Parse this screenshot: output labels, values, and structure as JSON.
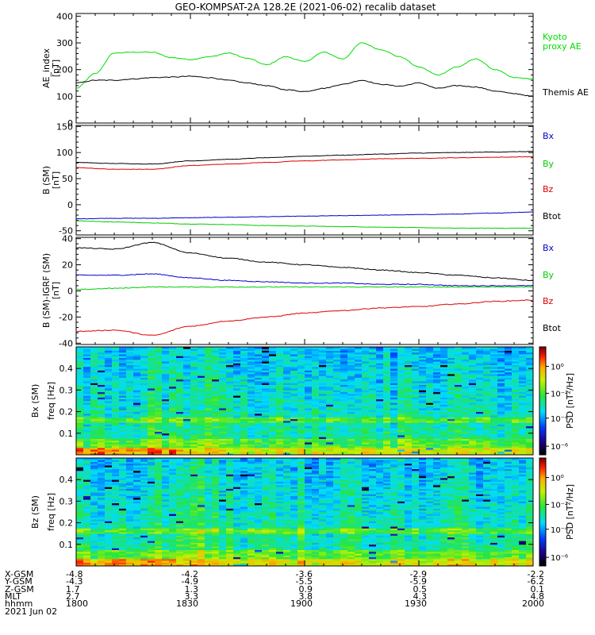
{
  "title": "GEO-KOMPSAT-2A 128.2E (2021-06-02) recalib dataset",
  "x_range_hhmm": [
    1800,
    2000
  ],
  "panel1": {
    "ylabel_line1": "AE_index",
    "ylabel_line2": "[nT]",
    "yticks": [
      0,
      100,
      200,
      300,
      400
    ],
    "ylim": [
      0,
      410
    ],
    "labels": [
      {
        "text": "Kyoto",
        "color": "#00dd00"
      },
      {
        "text": "proxy AE",
        "color": "#00dd00"
      },
      {
        "text": "Themis AE",
        "color": "#000000"
      }
    ]
  },
  "panel2": {
    "ylabel_line1": "B (SM)",
    "ylabel_sub": "t",
    "ylabel_line2": "[nT]",
    "yticks": [
      -50,
      0,
      50,
      100,
      150
    ],
    "ylim": [
      -58,
      152
    ],
    "labels": [
      {
        "text": "Bx",
        "color": "#0000cc"
      },
      {
        "text": "By",
        "color": "#00cc00"
      },
      {
        "text": "Bz",
        "color": "#dd0000"
      },
      {
        "text": "Btot",
        "color": "#000000"
      }
    ]
  },
  "panel3": {
    "ylabel_line1": "B (SM)-IGRF (SM)",
    "ylabel_line2": "[nT]",
    "yticks": [
      -40,
      -20,
      0,
      20,
      40
    ],
    "ylim": [
      -41,
      41
    ],
    "labels": [
      {
        "text": "Bx",
        "color": "#0000cc"
      },
      {
        "text": "By",
        "color": "#00cc00"
      },
      {
        "text": "Bz",
        "color": "#dd0000"
      },
      {
        "text": "Btot",
        "color": "#000000"
      }
    ]
  },
  "panel4": {
    "ylabel_line1": "Bx (SM)",
    "ylabel_line2": "freq [Hz]",
    "yticks": [
      "0.1",
      "0.2",
      "0.3",
      "0.4"
    ]
  },
  "panel5": {
    "ylabel_line1": "Bz (SM)",
    "ylabel_line2": "freq [Hz]",
    "yticks": [
      "0.1",
      "0.2",
      "0.3",
      "0.4"
    ]
  },
  "colorbar": {
    "label": "PSD [nT²/Hz]",
    "ticks": [
      "10⁰",
      "10⁻²",
      "10⁻⁴",
      "10⁻⁶"
    ]
  },
  "ephemeris": {
    "row_labels": [
      "X-GSM",
      "Y-GSM",
      "Z-GSM",
      "MLT",
      "hhmm",
      "2021 Jun 02"
    ],
    "columns": [
      [
        "-4.8",
        "-4.3",
        "1.7",
        "2.7",
        "1800"
      ],
      [
        "-4.2",
        "-4.9",
        "1.3",
        "3.3",
        "1830"
      ],
      [
        "-3.6",
        "-5.5",
        "0.9",
        "3.8",
        "1900"
      ],
      [
        "-2.9",
        "-5.9",
        "0.5",
        "4.3",
        "1930"
      ],
      [
        "-2.2",
        "-6.2",
        "0.1",
        "4.8",
        "2000"
      ]
    ]
  },
  "chart_data": [
    {
      "type": "line",
      "title": "GEO-KOMPSAT-2A 128.2E (2021-06-02) recalib dataset",
      "xlabel": "hhmm",
      "ylabel": "AE_index [nT]",
      "xlim": [
        1800,
        2000
      ],
      "ylim": [
        0,
        410
      ],
      "x": [
        1800,
        1805,
        1810,
        1815,
        1820,
        1825,
        1830,
        1835,
        1840,
        1845,
        1850,
        1855,
        1900,
        1905,
        1910,
        1915,
        1920,
        1925,
        1930,
        1935,
        1940,
        1945,
        1950,
        1955,
        2000
      ],
      "series": [
        {
          "name": "Kyoto proxy AE",
          "color": "#00dd00",
          "values": [
            130,
            185,
            262,
            265,
            265,
            245,
            238,
            248,
            262,
            242,
            218,
            248,
            230,
            265,
            240,
            300,
            275,
            248,
            210,
            180,
            210,
            240,
            200,
            170,
            165
          ]
        },
        {
          "name": "Themis AE",
          "color": "#000000",
          "values": [
            150,
            160,
            160,
            165,
            170,
            172,
            175,
            170,
            160,
            150,
            140,
            125,
            118,
            130,
            145,
            160,
            145,
            138,
            150,
            130,
            140,
            135,
            120,
            110,
            100
          ]
        }
      ]
    },
    {
      "type": "line",
      "ylabel": "B (SM) [nT]",
      "xlim": [
        1800,
        2000
      ],
      "ylim": [
        -58,
        152
      ],
      "x": [
        1800,
        1810,
        1820,
        1830,
        1840,
        1850,
        1900,
        1910,
        1920,
        1930,
        1940,
        1950,
        2000
      ],
      "series": [
        {
          "name": "Bx",
          "color": "#0000cc",
          "values": [
            -27,
            -26,
            -26,
            -25,
            -24,
            -23,
            -22,
            -21,
            -20,
            -19,
            -18,
            -16,
            -14
          ]
        },
        {
          "name": "By",
          "color": "#00cc00",
          "values": [
            -31,
            -33,
            -35,
            -37,
            -38,
            -40,
            -41,
            -42,
            -43,
            -44,
            -45,
            -45,
            -45
          ]
        },
        {
          "name": "Bz",
          "color": "#dd0000",
          "values": [
            71,
            68,
            68,
            75,
            78,
            81,
            84,
            86,
            88,
            89,
            90,
            91,
            92
          ]
        },
        {
          "name": "Btot",
          "color": "#000000",
          "values": [
            81,
            79,
            78,
            84,
            87,
            90,
            93,
            95,
            97,
            99,
            100,
            101,
            102
          ]
        }
      ]
    },
    {
      "type": "line",
      "ylabel": "B (SM)-IGRF (SM) [nT]",
      "xlim": [
        1800,
        2000
      ],
      "ylim": [
        -41,
        41
      ],
      "x": [
        1800,
        1810,
        1820,
        1830,
        1840,
        1850,
        1900,
        1910,
        1920,
        1930,
        1940,
        1950,
        2000
      ],
      "series": [
        {
          "name": "Bx",
          "color": "#0000cc",
          "values": [
            12,
            12,
            13,
            10,
            8,
            7,
            6,
            6,
            5,
            5,
            4,
            4,
            4
          ]
        },
        {
          "name": "By",
          "color": "#00cc00",
          "values": [
            1,
            2,
            3,
            3,
            3,
            3,
            3,
            3,
            3,
            3,
            3,
            3,
            3
          ]
        },
        {
          "name": "Bz",
          "color": "#dd0000",
          "values": [
            -31,
            -30,
            -34,
            -27,
            -23,
            -20,
            -17,
            -15,
            -13,
            -12,
            -10,
            -8,
            -7
          ]
        },
        {
          "name": "Btot",
          "color": "#000000",
          "values": [
            33,
            32,
            37,
            29,
            25,
            22,
            20,
            18,
            16,
            14,
            12,
            10,
            8
          ]
        }
      ]
    },
    {
      "type": "heatmap",
      "ylabel": "Bx (SM) freq [Hz]",
      "ylim": [
        0,
        0.5
      ],
      "xlim": [
        1800,
        2000
      ],
      "colorbar_label": "PSD [nT²/Hz]"
    },
    {
      "type": "heatmap",
      "ylabel": "Bz (SM) freq [Hz]",
      "ylim": [
        0,
        0.5
      ],
      "xlim": [
        1800,
        2000
      ],
      "colorbar_label": "PSD [nT²/Hz]"
    }
  ]
}
